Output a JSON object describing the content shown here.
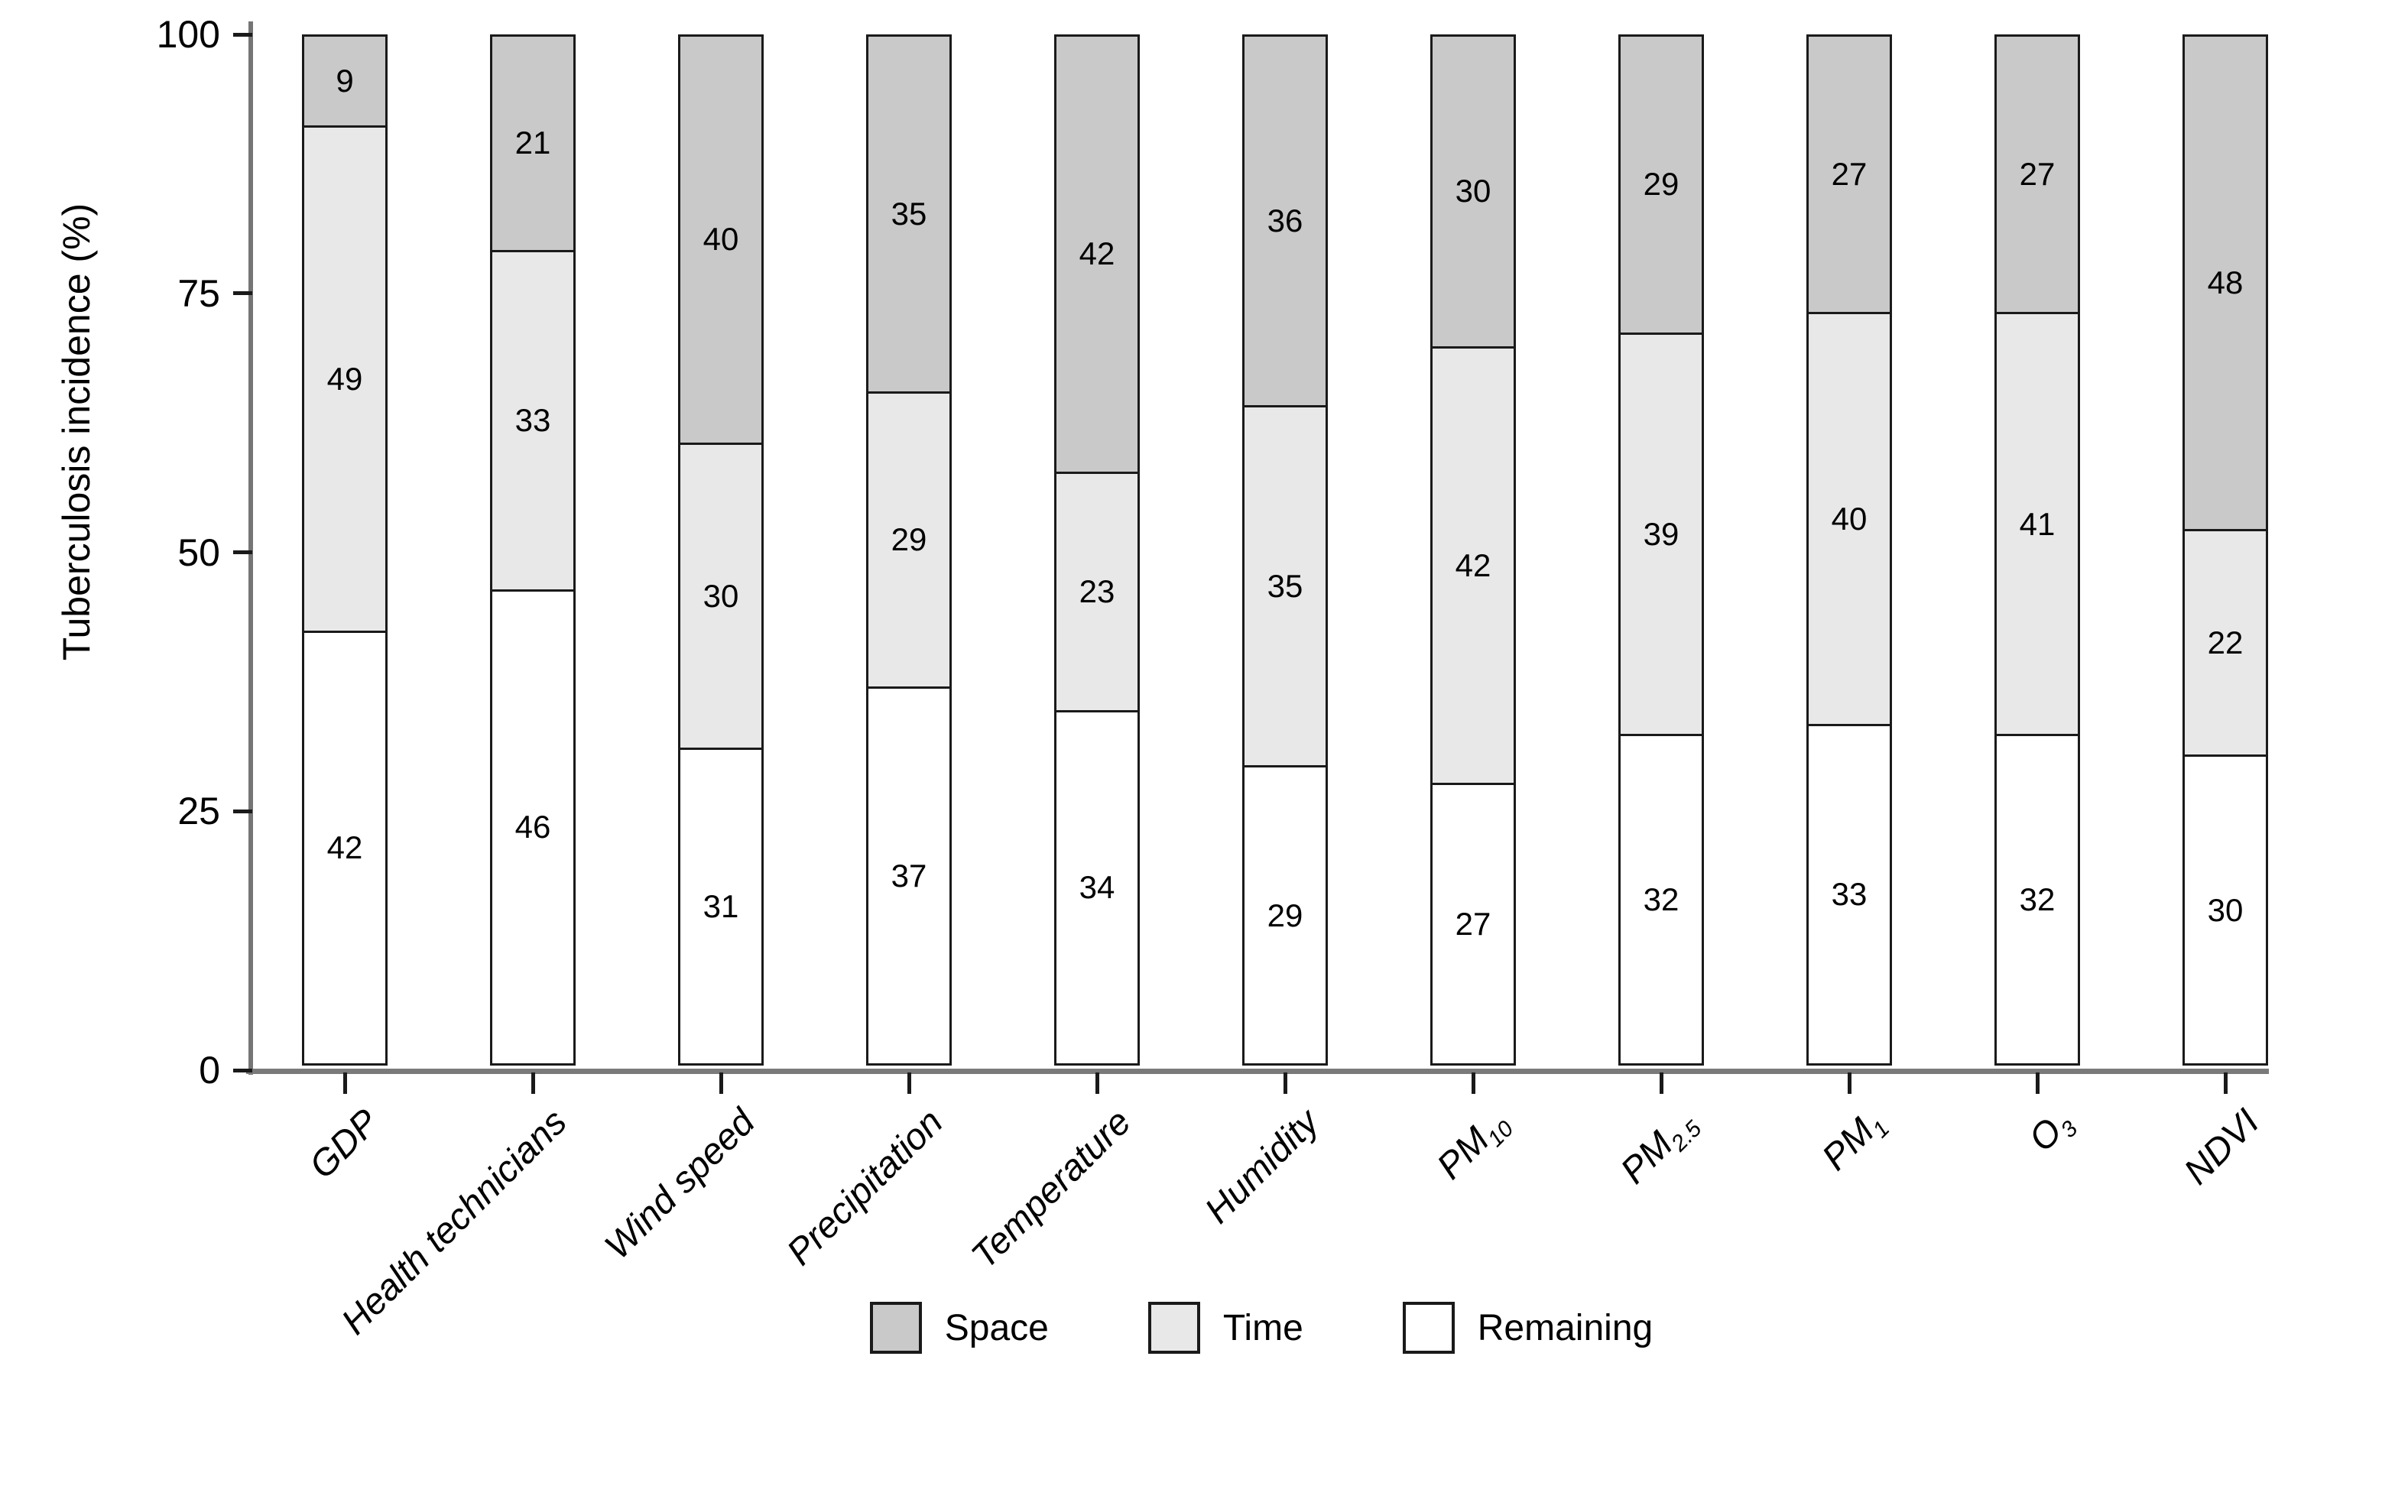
{
  "chart_data": {
    "type": "bar",
    "stacked": true,
    "orientation": "vertical",
    "title": "",
    "xlabel": "",
    "ylabel": "Tuberculosis incidence (%)",
    "ylim": [
      0,
      100
    ],
    "yticks": [
      0,
      25,
      50,
      75,
      100
    ],
    "grid": "off",
    "legend_position": "bottom-center",
    "categories": [
      {
        "label": "GDP",
        "sub": ""
      },
      {
        "label": "Health technicians",
        "sub": ""
      },
      {
        "label": "Wind speed",
        "sub": ""
      },
      {
        "label": "Precipitation",
        "sub": ""
      },
      {
        "label": "Temperature",
        "sub": ""
      },
      {
        "label": "Humidity",
        "sub": ""
      },
      {
        "label": "PM",
        "sub": "10"
      },
      {
        "label": "PM",
        "sub": "2.5"
      },
      {
        "label": "PM",
        "sub": "1"
      },
      {
        "label": "O",
        "sub": "3"
      },
      {
        "label": "NDVI",
        "sub": ""
      }
    ],
    "series": [
      {
        "name": "Space",
        "color": "#c9c9c9",
        "values": [
          9,
          21,
          40,
          35,
          42,
          36,
          30,
          29,
          27,
          27,
          48
        ]
      },
      {
        "name": "Time",
        "color": "#e8e8e8",
        "values": [
          49,
          33,
          30,
          29,
          23,
          35,
          42,
          39,
          40,
          41,
          22
        ]
      },
      {
        "name": "Remaining",
        "color": "#ffffff",
        "values": [
          42,
          46,
          31,
          37,
          34,
          29,
          27,
          32,
          33,
          32,
          30
        ]
      }
    ]
  },
  "styles": {
    "axis_color": "#757575",
    "bar_border_color": "#1a1a1a",
    "text_color": "#000000",
    "background": "#ffffff"
  }
}
